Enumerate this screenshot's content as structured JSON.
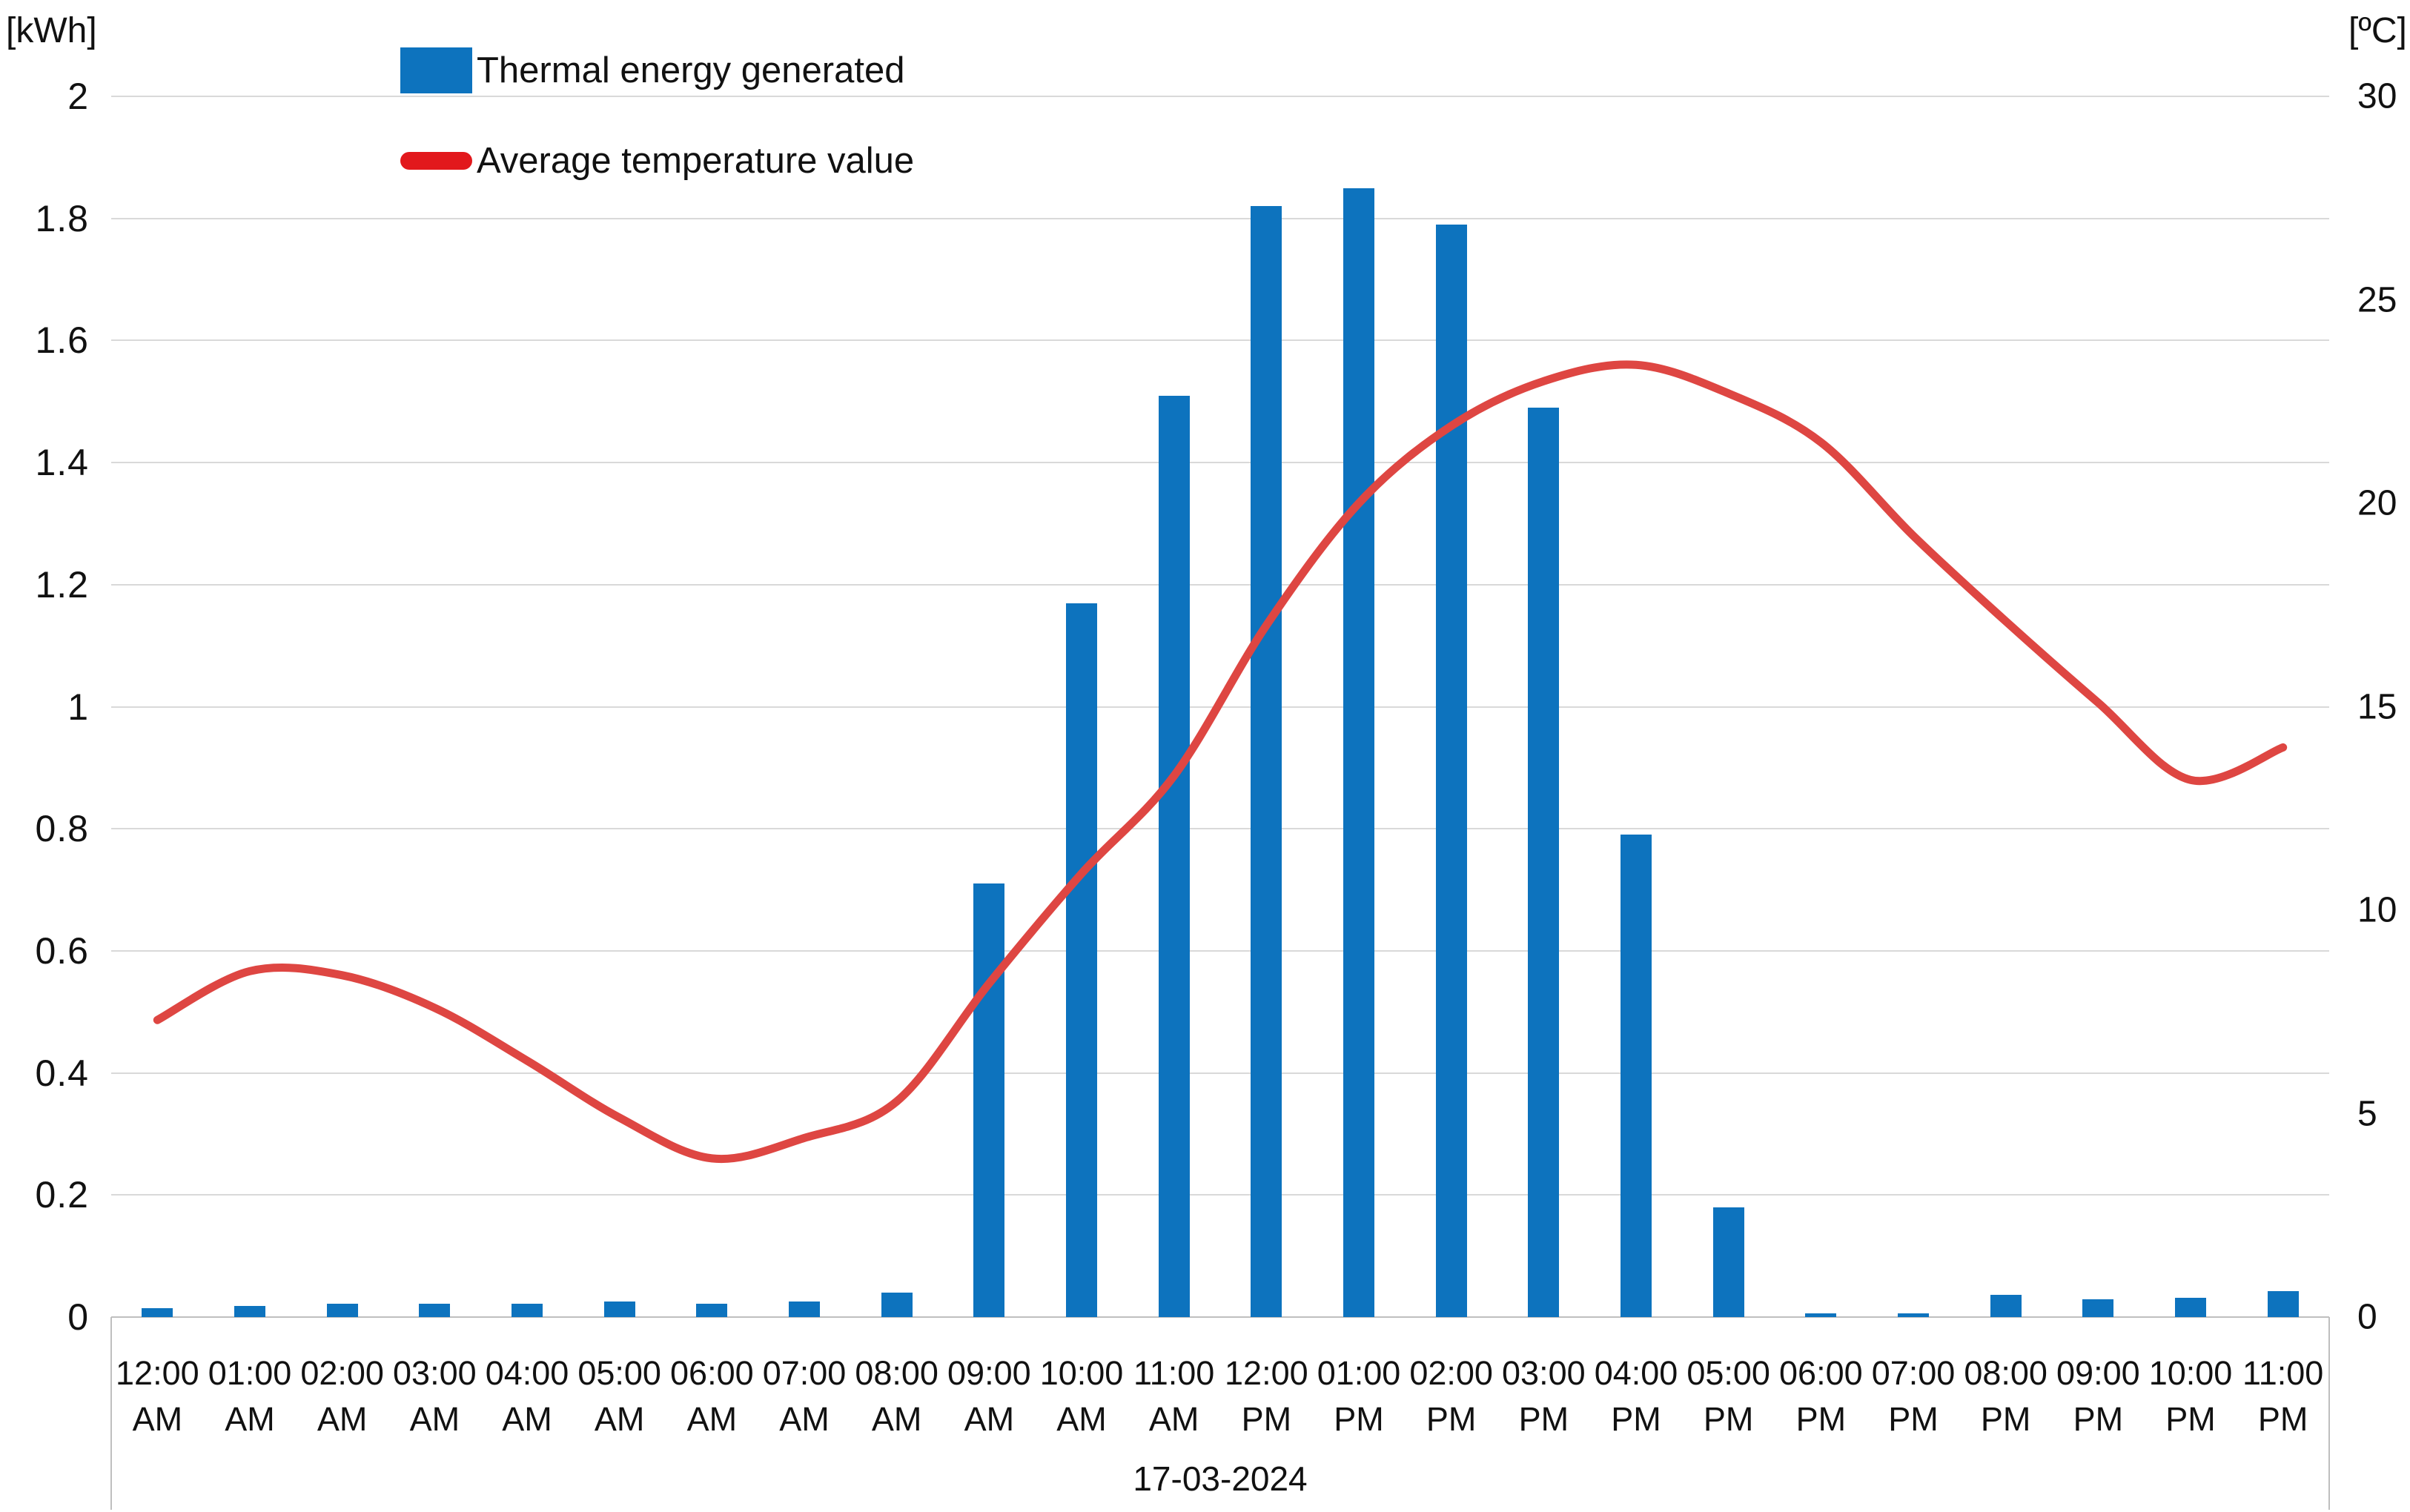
{
  "chart_data": {
    "type": "combo",
    "title": "",
    "date_label": "17-03-2024",
    "categories": [
      {
        "time": "12:00",
        "meridiem": "AM"
      },
      {
        "time": "01:00",
        "meridiem": "AM"
      },
      {
        "time": "02:00",
        "meridiem": "AM"
      },
      {
        "time": "03:00",
        "meridiem": "AM"
      },
      {
        "time": "04:00",
        "meridiem": "AM"
      },
      {
        "time": "05:00",
        "meridiem": "AM"
      },
      {
        "time": "06:00",
        "meridiem": "AM"
      },
      {
        "time": "07:00",
        "meridiem": "AM"
      },
      {
        "time": "08:00",
        "meridiem": "AM"
      },
      {
        "time": "09:00",
        "meridiem": "AM"
      },
      {
        "time": "10:00",
        "meridiem": "AM"
      },
      {
        "time": "11:00",
        "meridiem": "AM"
      },
      {
        "time": "12:00",
        "meridiem": "PM"
      },
      {
        "time": "01:00",
        "meridiem": "PM"
      },
      {
        "time": "02:00",
        "meridiem": "PM"
      },
      {
        "time": "03:00",
        "meridiem": "PM"
      },
      {
        "time": "04:00",
        "meridiem": "PM"
      },
      {
        "time": "05:00",
        "meridiem": "PM"
      },
      {
        "time": "06:00",
        "meridiem": "PM"
      },
      {
        "time": "07:00",
        "meridiem": "PM"
      },
      {
        "time": "08:00",
        "meridiem": "PM"
      },
      {
        "time": "09:00",
        "meridiem": "PM"
      },
      {
        "time": "10:00",
        "meridiem": "PM"
      },
      {
        "time": "11:00",
        "meridiem": "PM"
      }
    ],
    "series": [
      {
        "name": "Thermal energy generated",
        "type": "bar",
        "axis": "left",
        "unit": "kWh",
        "values": [
          0.015,
          0.018,
          0.022,
          0.022,
          0.022,
          0.025,
          0.022,
          0.025,
          0.04,
          0.71,
          1.17,
          1.51,
          1.82,
          1.85,
          1.79,
          1.49,
          0.79,
          0.18,
          0.006,
          0.006,
          0.036,
          0.029,
          0.032,
          0.042
        ]
      },
      {
        "name": "Average temperature value",
        "type": "line",
        "axis": "right",
        "unit": "°C",
        "values": [
          7.3,
          8.5,
          8.4,
          7.6,
          6.3,
          4.9,
          3.9,
          4.4,
          5.3,
          8.2,
          10.9,
          13.3,
          17.0,
          20.0,
          21.9,
          23.0,
          23.4,
          22.7,
          21.5,
          19.2,
          17.1,
          15.1,
          13.2,
          14.0
        ]
      }
    ],
    "left_axis": {
      "title": "[kWh]",
      "range": [
        0,
        2
      ],
      "ticks": [
        "2",
        "1.8",
        "1.6",
        "1.4",
        "1.2",
        "1",
        "0.8",
        "0.6",
        "0.4",
        "0.2",
        "0"
      ]
    },
    "right_axis": {
      "title": "[ºC]",
      "range": [
        0,
        30
      ],
      "ticks": [
        "30",
        "25",
        "20",
        "15",
        "10",
        "5",
        "0"
      ]
    },
    "grid": "horizontal",
    "legend_position": "top-left-inside",
    "colors": {
      "bar": "#0d73be",
      "line": "#de4642",
      "legend_line_swatch": "#e2181c",
      "grid": "#d9d9d9",
      "axis": "#bfbfbf",
      "text": "#111111"
    }
  }
}
